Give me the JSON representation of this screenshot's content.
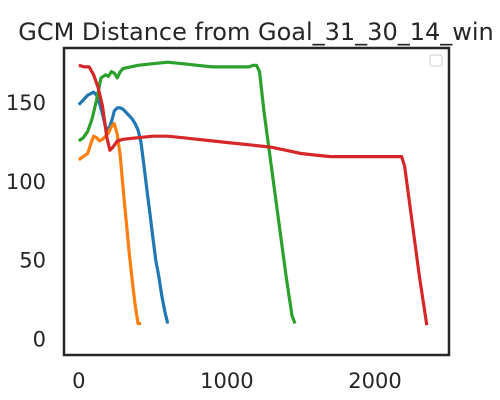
{
  "chart_data": {
    "type": "line",
    "title": "GCM Distance from Goal_31_30_14_win",
    "xlabel": "",
    "ylabel": "",
    "xlim": [
      -100,
      2500
    ],
    "ylim": [
      -10,
      185
    ],
    "x_ticks": [
      0,
      1000,
      2000
    ],
    "y_ticks": [
      0,
      50,
      100,
      150
    ],
    "x_tick_labels": [
      "0",
      "1000",
      "2000"
    ],
    "y_tick_labels": [
      "0",
      "50",
      "100",
      "150"
    ],
    "grid": false,
    "legend": {
      "placement": "top-right",
      "entries": []
    },
    "series": [
      {
        "color": "#1f77b4",
        "x": [
          0,
          30,
          60,
          80,
          100,
          120,
          140,
          160,
          180,
          200,
          220,
          240,
          260,
          280,
          300,
          320,
          340,
          360,
          380,
          400,
          420,
          440,
          460,
          480,
          500,
          520,
          540,
          560,
          580,
          600
        ],
        "y": [
          149,
          152,
          155,
          156,
          157,
          155,
          150,
          143,
          135,
          133,
          138,
          145,
          147,
          147,
          146,
          144,
          142,
          140,
          137,
          133,
          125,
          110,
          95,
          80,
          65,
          50,
          40,
          28,
          18,
          10
        ]
      },
      {
        "color": "#ff7f0e",
        "x": [
          0,
          30,
          60,
          80,
          100,
          120,
          140,
          160,
          180,
          200,
          220,
          240,
          260,
          280,
          300,
          320,
          340,
          360,
          380,
          400,
          420
        ],
        "y": [
          114,
          116,
          118,
          124,
          129,
          128,
          126,
          127,
          129,
          131,
          135,
          137,
          130,
          116,
          95,
          75,
          55,
          38,
          22,
          10,
          10
        ]
      },
      {
        "color": "#2ca02c",
        "x": [
          0,
          30,
          60,
          90,
          120,
          150,
          180,
          200,
          220,
          240,
          260,
          280,
          300,
          350,
          400,
          500,
          600,
          700,
          800,
          900,
          1000,
          1100,
          1150,
          1180,
          1200,
          1220,
          1250,
          1300,
          1350,
          1400,
          1440,
          1460
        ],
        "y": [
          126,
          128,
          132,
          140,
          152,
          166,
          168,
          167,
          170,
          169,
          166,
          170,
          172,
          173,
          174,
          175,
          176,
          175,
          174,
          173,
          173,
          173,
          173,
          174,
          174,
          170,
          145,
          110,
          75,
          40,
          15,
          10
        ]
      },
      {
        "color": "#d62728",
        "x": [
          0,
          40,
          70,
          100,
          130,
          160,
          190,
          210,
          230,
          260,
          300,
          400,
          500,
          600,
          700,
          800,
          900,
          1000,
          1100,
          1200,
          1300,
          1400,
          1500,
          1600,
          1700,
          1800,
          1900,
          2000,
          2100,
          2150,
          2180,
          2200,
          2250,
          2300,
          2350
        ],
        "y": [
          174,
          173,
          173,
          168,
          160,
          148,
          128,
          120,
          122,
          126,
          127,
          128,
          129,
          129,
          128,
          127,
          126,
          125,
          124,
          123,
          122,
          120,
          118,
          117,
          116,
          116,
          116,
          116,
          116,
          116,
          116,
          110,
          75,
          40,
          9
        ]
      }
    ]
  }
}
